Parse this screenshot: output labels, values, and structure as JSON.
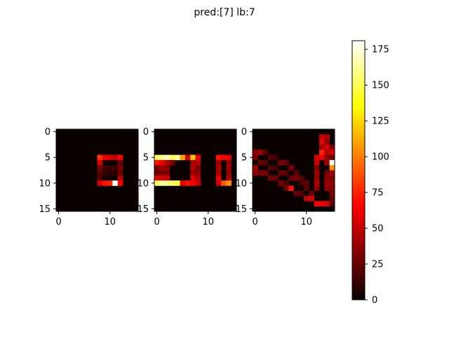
{
  "figure": {
    "title": "pred:[7]  lb:7"
  },
  "chart_data": [
    {
      "type": "heatmap",
      "ytick_labels": [
        "0",
        "5",
        "10",
        "15"
      ],
      "xtick_labels": [
        "0",
        "10"
      ],
      "xlim": [
        -0.5,
        15.5
      ],
      "ylim": [
        15.5,
        -0.5
      ],
      "cells": [
        [
          5,
          8,
          80
        ],
        [
          5,
          9,
          60
        ],
        [
          5,
          10,
          55
        ],
        [
          5,
          11,
          50
        ],
        [
          5,
          12,
          65
        ],
        [
          6,
          8,
          55
        ],
        [
          6,
          12,
          25
        ],
        [
          7,
          8,
          30
        ],
        [
          7,
          9,
          15
        ],
        [
          7,
          10,
          10
        ],
        [
          7,
          11,
          15
        ],
        [
          7,
          12,
          30
        ],
        [
          8,
          8,
          20
        ],
        [
          8,
          9,
          10
        ],
        [
          8,
          10,
          10
        ],
        [
          8,
          11,
          10
        ],
        [
          8,
          12,
          25
        ],
        [
          9,
          8,
          20
        ],
        [
          9,
          12,
          45
        ],
        [
          10,
          8,
          55
        ],
        [
          10,
          9,
          70
        ],
        [
          10,
          10,
          75
        ],
        [
          10,
          11,
          180
        ],
        [
          10,
          12,
          65
        ]
      ]
    },
    {
      "type": "heatmap",
      "ytick_labels": [
        "0",
        "5",
        "10",
        "15"
      ],
      "xtick_labels": [
        "0",
        "10"
      ],
      "xlim": [
        -0.5,
        15.5
      ],
      "ylim": [
        15.5,
        -0.5
      ],
      "cells": [
        [
          5,
          0,
          150
        ],
        [
          5,
          1,
          160
        ],
        [
          5,
          2,
          170
        ],
        [
          5,
          3,
          150
        ],
        [
          5,
          4,
          165
        ],
        [
          5,
          5,
          110
        ],
        [
          5,
          6,
          55
        ],
        [
          5,
          7,
          120
        ],
        [
          5,
          8,
          60
        ],
        [
          5,
          12,
          70
        ],
        [
          5,
          13,
          65
        ],
        [
          5,
          14,
          60
        ],
        [
          6,
          0,
          70
        ],
        [
          6,
          1,
          60
        ],
        [
          6,
          2,
          45
        ],
        [
          6,
          3,
          30
        ],
        [
          6,
          7,
          40
        ],
        [
          6,
          8,
          45
        ],
        [
          6,
          12,
          40
        ],
        [
          6,
          14,
          35
        ],
        [
          7,
          0,
          30
        ],
        [
          7,
          1,
          40
        ],
        [
          7,
          2,
          35
        ],
        [
          7,
          7,
          45
        ],
        [
          7,
          8,
          30
        ],
        [
          7,
          12,
          45
        ],
        [
          7,
          14,
          40
        ],
        [
          8,
          0,
          25
        ],
        [
          8,
          1,
          30
        ],
        [
          8,
          2,
          30
        ],
        [
          8,
          7,
          40
        ],
        [
          8,
          8,
          35
        ],
        [
          8,
          12,
          40
        ],
        [
          8,
          14,
          35
        ],
        [
          9,
          0,
          60
        ],
        [
          9,
          1,
          55
        ],
        [
          9,
          2,
          50
        ],
        [
          9,
          7,
          55
        ],
        [
          9,
          8,
          45
        ],
        [
          9,
          12,
          60
        ],
        [
          9,
          14,
          45
        ],
        [
          10,
          0,
          150
        ],
        [
          10,
          1,
          165
        ],
        [
          10,
          2,
          160
        ],
        [
          10,
          3,
          150
        ],
        [
          10,
          4,
          145
        ],
        [
          10,
          5,
          60
        ],
        [
          10,
          6,
          70
        ],
        [
          10,
          7,
          65
        ],
        [
          10,
          8,
          50
        ],
        [
          10,
          12,
          50
        ],
        [
          10,
          13,
          90
        ],
        [
          10,
          14,
          105
        ]
      ]
    },
    {
      "type": "heatmap",
      "ytick_labels": [
        "0",
        "5",
        "10",
        "15"
      ],
      "xtick_labels": [
        "0",
        "10"
      ],
      "xlim": [
        -0.5,
        15.5
      ],
      "ylim": [
        15.5,
        -0.5
      ],
      "cells": [
        [
          1,
          13,
          50
        ],
        [
          1,
          14,
          45
        ],
        [
          2,
          13,
          60
        ],
        [
          2,
          14,
          35
        ],
        [
          3,
          13,
          40
        ],
        [
          3,
          14,
          55
        ],
        [
          3,
          15,
          30
        ],
        [
          4,
          0,
          35
        ],
        [
          4,
          1,
          40
        ],
        [
          4,
          2,
          20
        ],
        [
          4,
          13,
          75
        ],
        [
          4,
          14,
          45
        ],
        [
          4,
          15,
          55
        ],
        [
          5,
          0,
          30
        ],
        [
          5,
          3,
          20
        ],
        [
          5,
          4,
          15
        ],
        [
          5,
          12,
          55
        ],
        [
          5,
          13,
          60
        ],
        [
          5,
          14,
          35
        ],
        [
          5,
          15,
          25
        ],
        [
          6,
          1,
          25
        ],
        [
          6,
          2,
          20
        ],
        [
          6,
          5,
          30
        ],
        [
          6,
          6,
          25
        ],
        [
          6,
          12,
          50
        ],
        [
          6,
          14,
          40
        ],
        [
          6,
          15,
          180
        ],
        [
          7,
          0,
          40
        ],
        [
          7,
          3,
          20
        ],
        [
          7,
          4,
          15
        ],
        [
          7,
          7,
          30
        ],
        [
          7,
          12,
          30
        ],
        [
          7,
          15,
          105
        ],
        [
          8,
          0,
          35
        ],
        [
          8,
          1,
          30
        ],
        [
          8,
          2,
          30
        ],
        [
          8,
          5,
          25
        ],
        [
          8,
          6,
          20
        ],
        [
          8,
          8,
          20
        ],
        [
          8,
          12,
          40
        ],
        [
          8,
          14,
          30
        ],
        [
          8,
          15,
          40
        ],
        [
          9,
          3,
          30
        ],
        [
          9,
          4,
          25
        ],
        [
          9,
          7,
          25
        ],
        [
          9,
          8,
          30
        ],
        [
          9,
          9,
          20
        ],
        [
          9,
          12,
          35
        ],
        [
          9,
          14,
          35
        ],
        [
          9,
          15,
          30
        ],
        [
          10,
          5,
          30
        ],
        [
          10,
          6,
          20
        ],
        [
          10,
          9,
          15
        ],
        [
          10,
          10,
          25
        ],
        [
          10,
          12,
          45
        ],
        [
          10,
          14,
          40
        ],
        [
          10,
          15,
          35
        ],
        [
          11,
          6,
          25
        ],
        [
          11,
          7,
          70
        ],
        [
          11,
          10,
          20
        ],
        [
          11,
          12,
          35
        ],
        [
          11,
          14,
          35
        ],
        [
          11,
          15,
          30
        ],
        [
          12,
          8,
          25
        ],
        [
          12,
          9,
          20
        ],
        [
          12,
          11,
          25
        ],
        [
          12,
          15,
          30
        ],
        [
          13,
          10,
          50
        ],
        [
          13,
          11,
          55
        ],
        [
          13,
          15,
          25
        ],
        [
          14,
          12,
          65
        ],
        [
          14,
          13,
          60
        ],
        [
          14,
          14,
          55
        ],
        [
          14,
          15,
          20
        ]
      ]
    }
  ],
  "colorbar": {
    "cmap": "hot",
    "vmin": 0,
    "vmax": 181,
    "ticks": [
      "0",
      "25",
      "50",
      "75",
      "100",
      "125",
      "150",
      "175"
    ]
  }
}
